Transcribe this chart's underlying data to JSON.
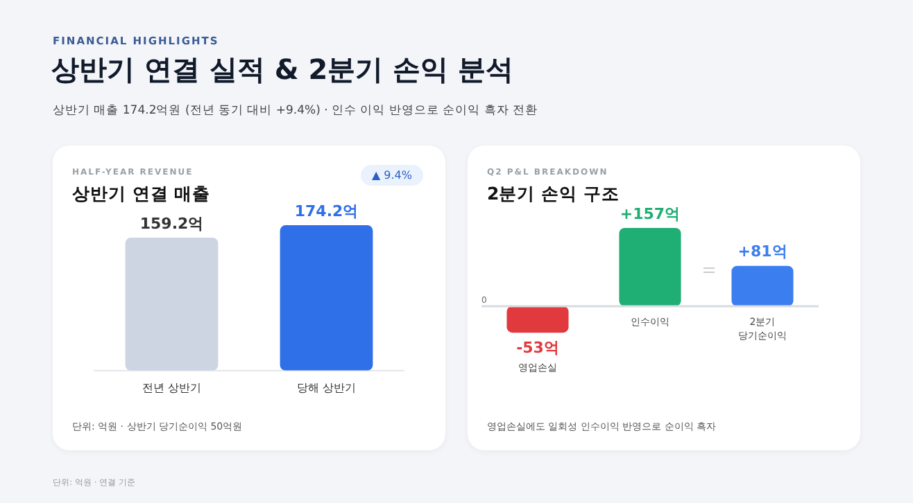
{
  "chart_data": [
    {
      "type": "other",
      "subtitle": "FINANCIAL HIGHLIGHTS",
      "title": "상반기 연결 실적 & 2분기 손익 분석",
      "annotations": [
        "상반기 매출 174.2억원 (전년 동기 대비 +9.4%) · 인수 이익 반영으로 순이익 흑자 전환",
        "단위: 억원 · 연결 기준"
      ]
    },
    {
      "type": "bar",
      "subtitle": "HALF-YEAR REVENUE",
      "title": "상반기 연결 매출",
      "categories": [
        "전년 상반기",
        "당해 상반기"
      ],
      "values": [
        159.2,
        174.2
      ],
      "colors": [
        "#ccd5e1",
        "#2f6fe8"
      ],
      "value_labels": [
        "159.2억",
        "174.2억"
      ],
      "tick_labels": "x",
      "grid": false,
      "legend": false,
      "annotations": [
        "▲ 9.4%",
        "단위: 억원 · 상반기 당기순이익 50억원"
      ]
    },
    {
      "type": "bar",
      "subtitle": "Q2 P&L BREAKDOWN",
      "title": "2분기 손익 구조",
      "categories": [
        "영업손실",
        "인수이익",
        "2분기 당기순이익"
      ],
      "values": [
        -53,
        157,
        81
      ],
      "colors": [
        "#e0393e",
        "#1fae74",
        "#3b7ef0"
      ],
      "value_labels": [
        "-53억",
        "+157억",
        "+81억"
      ],
      "tick_labels": false,
      "grid": false,
      "legend": false,
      "annotations": [
        "0",
        "영업손실에도 일회성 인수이익 반영으로 순이익 흑자"
      ]
    }
  ]
}
